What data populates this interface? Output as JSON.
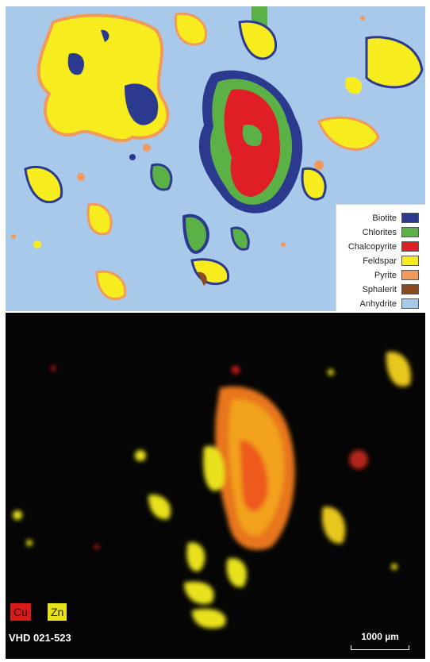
{
  "top_panel": {
    "legend": [
      {
        "label": "Biotite",
        "color": "#2b3a8f"
      },
      {
        "label": "Chlorites",
        "color": "#5bb046"
      },
      {
        "label": "Chalcopyrite",
        "color": "#e01e25"
      },
      {
        "label": "Feldspar",
        "color": "#f7ec1e"
      },
      {
        "label": "Pyrite",
        "color": "#f29a5b"
      },
      {
        "label": "Sphalerit",
        "color": "#8a4a1f"
      },
      {
        "label": "Anhydrite",
        "color": "#a9c9ea"
      }
    ]
  },
  "bottom_panel": {
    "elements": [
      {
        "label": "Cu",
        "color": "#d81a1a"
      },
      {
        "label": "Zn",
        "color": "#e8e21b"
      }
    ],
    "sample_id": "VHD 021-523",
    "scale_bar": "1000 µm"
  }
}
